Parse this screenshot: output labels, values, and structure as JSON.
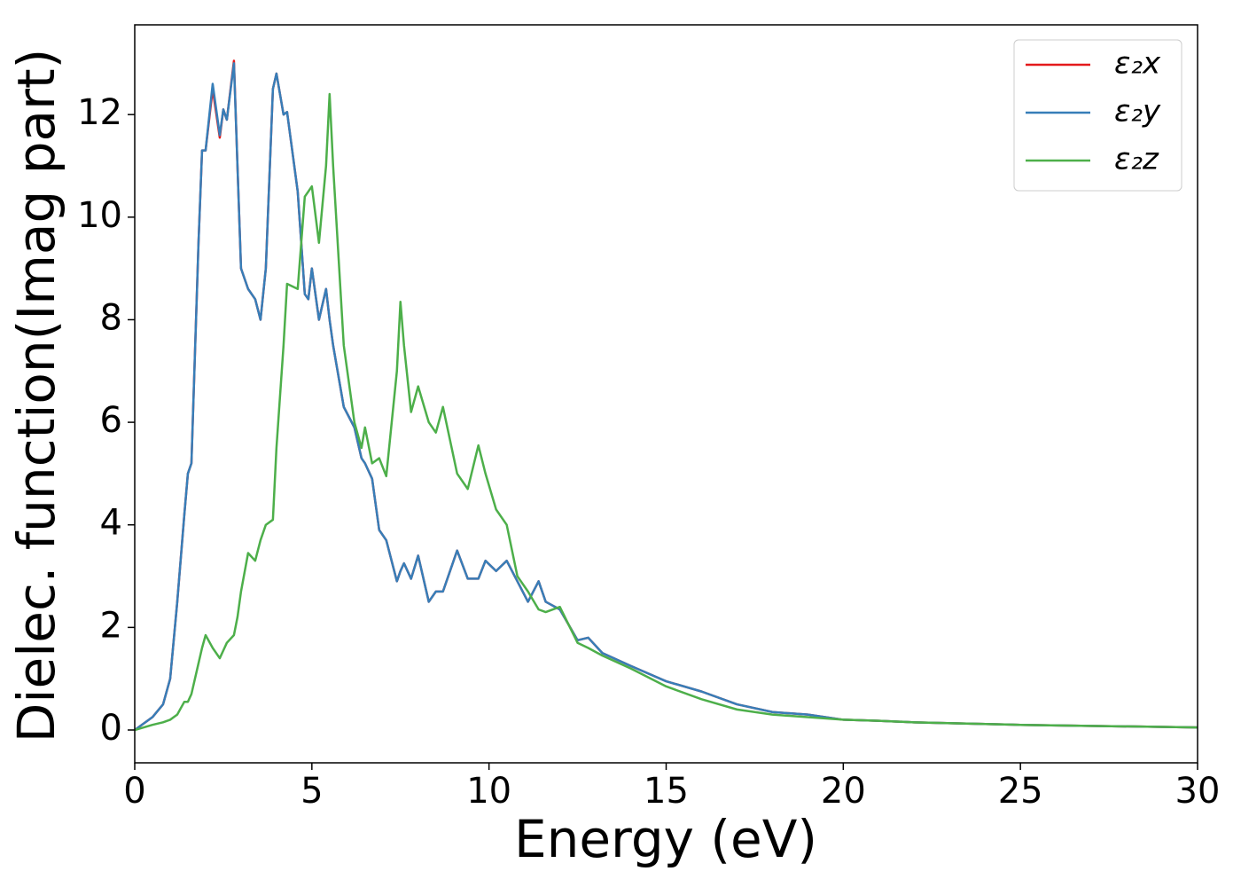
{
  "chart_data": {
    "type": "line",
    "xlabel": "Energy (eV)",
    "ylabel": "Dielec. function(Imag part)",
    "x": [
      0,
      0.5,
      0.8,
      1,
      1.2,
      1.4,
      1.5,
      1.6,
      1.8,
      1.9,
      2,
      2.2,
      2.4,
      2.5,
      2.6,
      2.8,
      2.9,
      3,
      3.2,
      3.4,
      3.55,
      3.7,
      3.9,
      4,
      4.2,
      4.3,
      4.6,
      4.8,
      4.9,
      5,
      5.2,
      5.4,
      5.5,
      5.6,
      5.9,
      6.2,
      6.4,
      6.5,
      6.7,
      6.9,
      7.1,
      7.4,
      7.5,
      7.6,
      7.8,
      8,
      8.3,
      8.5,
      8.7,
      9.1,
      9.4,
      9.7,
      9.9,
      10.2,
      10.5,
      10.8,
      11.1,
      11.4,
      11.6,
      12,
      12.5,
      12.8,
      13.2,
      14,
      15,
      16,
      17,
      18,
      19,
      20,
      21,
      22,
      25,
      30
    ],
    "series": [
      {
        "name": "ε₂x",
        "color": "#e41a1c",
        "values": [
          0,
          0.25,
          0.5,
          1,
          2.5,
          4.2,
          5,
          5.2,
          9.5,
          11.3,
          11.3,
          12.5,
          11.55,
          12.1,
          11.9,
          13.05,
          11,
          9,
          8.6,
          8.4,
          8,
          9,
          12.5,
          12.8,
          12,
          12.05,
          10.5,
          8.5,
          8.4,
          9,
          8,
          8.6,
          8,
          7.5,
          6.3,
          5.9,
          5.3,
          5.2,
          4.9,
          3.9,
          3.7,
          2.9,
          3.1,
          3.25,
          2.95,
          3.4,
          2.5,
          2.7,
          2.7,
          3.5,
          2.95,
          2.95,
          3.3,
          3.1,
          3.3,
          2.9,
          2.5,
          2.9,
          2.5,
          2.35,
          1.75,
          1.8,
          1.5,
          1.25,
          0.95,
          0.75,
          0.5,
          0.35,
          0.3,
          0.2,
          0.18,
          0.15,
          0.1,
          0.05
        ]
      },
      {
        "name": "ε₂y",
        "color": "#377eb8",
        "values": [
          0,
          0.25,
          0.5,
          1,
          2.5,
          4.2,
          5,
          5.2,
          9.5,
          11.3,
          11.3,
          12.6,
          11.6,
          12.1,
          11.9,
          13,
          11,
          9,
          8.6,
          8.4,
          8,
          9,
          12.5,
          12.8,
          12,
          12.05,
          10.5,
          8.5,
          8.4,
          9,
          8,
          8.6,
          8,
          7.5,
          6.3,
          5.9,
          5.3,
          5.2,
          4.9,
          3.9,
          3.7,
          2.9,
          3.1,
          3.25,
          2.95,
          3.4,
          2.5,
          2.7,
          2.7,
          3.5,
          2.95,
          2.95,
          3.3,
          3.1,
          3.3,
          2.9,
          2.5,
          2.9,
          2.5,
          2.35,
          1.75,
          1.8,
          1.5,
          1.25,
          0.95,
          0.75,
          0.5,
          0.35,
          0.3,
          0.2,
          0.18,
          0.15,
          0.1,
          0.05
        ]
      },
      {
        "name": "ε₂z",
        "color": "#4daf4a",
        "values": [
          0,
          0.1,
          0.15,
          0.2,
          0.3,
          0.55,
          0.55,
          0.7,
          1.3,
          1.6,
          1.85,
          1.6,
          1.4,
          1.55,
          1.7,
          1.85,
          2.2,
          2.7,
          3.45,
          3.3,
          3.7,
          4,
          4.1,
          5.5,
          7.5,
          8.7,
          8.6,
          10.4,
          10.5,
          10.6,
          9.5,
          11,
          12.4,
          11,
          7.5,
          6,
          5.5,
          5.9,
          5.2,
          5.3,
          4.95,
          7,
          8.35,
          7.5,
          6.2,
          6.7,
          6,
          5.8,
          6.3,
          5,
          4.7,
          5.55,
          5,
          4.3,
          4,
          3,
          2.7,
          2.35,
          2.3,
          2.4,
          1.7,
          1.6,
          1.45,
          1.2,
          0.85,
          0.6,
          0.4,
          0.3,
          0.25,
          0.2,
          0.18,
          0.15,
          0.1,
          0.05
        ]
      }
    ],
    "xlim": [
      0,
      30
    ],
    "xticks": [
      0,
      5,
      10,
      15,
      20,
      25,
      30
    ],
    "ylim": [
      -0.64,
      13.75
    ],
    "yticks": [
      0,
      2,
      4,
      6,
      8,
      10,
      12
    ],
    "grid": false,
    "legend": "upper right"
  }
}
